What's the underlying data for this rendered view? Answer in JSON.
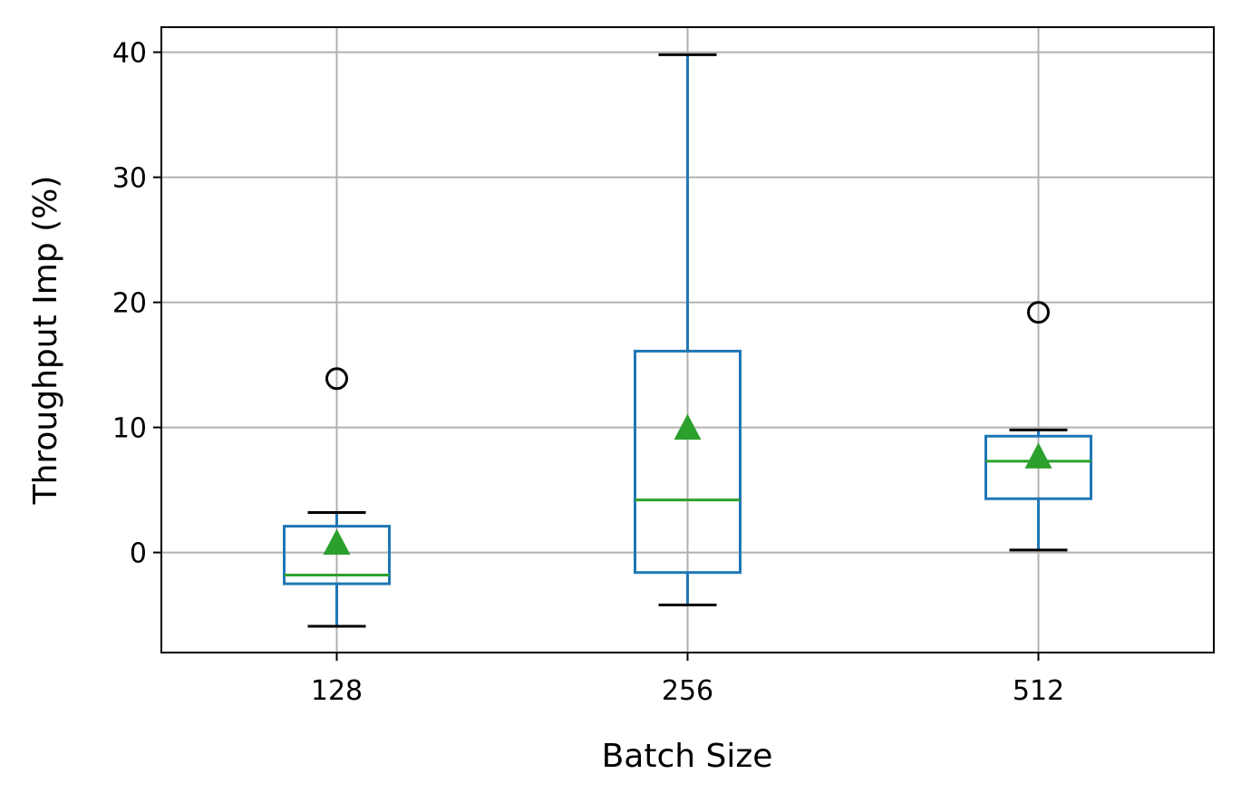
{
  "chart_data": {
    "type": "box",
    "xlabel": "Batch Size",
    "ylabel": "Throughput Imp (%)",
    "ylim": [
      -8,
      42
    ],
    "yticks": [
      0,
      10,
      20,
      30,
      40
    ],
    "grid": true,
    "categories": [
      "128",
      "256",
      "512"
    ],
    "boxes": [
      {
        "category": "128",
        "whisker_low": -5.9,
        "q1": -2.5,
        "median": -1.8,
        "q3": 2.1,
        "whisker_high": 3.2,
        "mean": 0.8,
        "outliers": [
          13.9
        ]
      },
      {
        "category": "256",
        "whisker_low": -4.2,
        "q1": -1.6,
        "median": 4.2,
        "q3": 16.1,
        "whisker_high": 39.8,
        "mean": 10.0,
        "outliers": []
      },
      {
        "category": "512",
        "whisker_low": 0.2,
        "q1": 4.3,
        "median": 7.3,
        "q3": 9.3,
        "whisker_high": 9.8,
        "mean": 7.7,
        "outliers": [
          19.2
        ]
      }
    ],
    "colors": {
      "box": "#1f77b4",
      "median": "#2ca02c",
      "mean": "#2ca02c",
      "whisker_cap": "#000000",
      "outlier": "#000000",
      "grid": "#b0b0b0"
    }
  }
}
